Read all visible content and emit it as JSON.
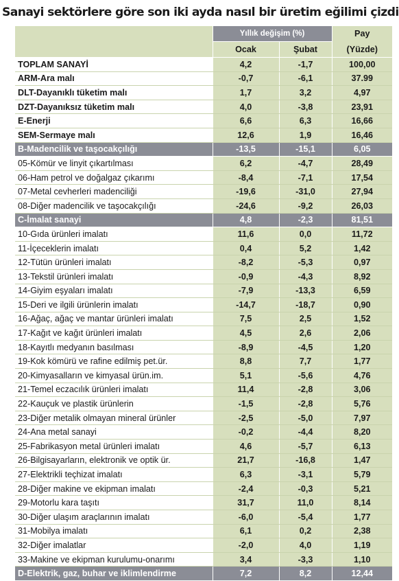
{
  "title": "Sanayi sektörlere göre son iki ayda nasıl bir üretim eğilimi çizdi...",
  "header": {
    "group_label": "Yıllık değişim (%)",
    "pay_line1": "Pay",
    "col_ocak": "Ocak",
    "col_subat": "Şubat",
    "pay_line2": "(Yüzde)"
  },
  "rows": [
    {
      "label": "TOPLAM SANAYİ",
      "ocak": "4,2",
      "subat": "-1,7",
      "pay": "100,00",
      "style": "bold"
    },
    {
      "label": "ARM-Ara malı",
      "ocak": "-0,7",
      "subat": "-6,1",
      "pay": "37.99",
      "style": "bold"
    },
    {
      "label": "DLT-Dayanıklı tüketim malı",
      "ocak": "1,7",
      "subat": "3,2",
      "pay": "4,97",
      "style": "bold"
    },
    {
      "label": "DZT-Dayanıksız tüketim malı",
      "ocak": "4,0",
      "subat": "-3,8",
      "pay": "23,91",
      "style": "bold"
    },
    {
      "label": "E-Enerji",
      "ocak": "6,6",
      "subat": "6,3",
      "pay": "16,66",
      "style": "bold"
    },
    {
      "label": "SEM-Sermaye malı",
      "ocak": "12,6",
      "subat": "1,9",
      "pay": "16,46",
      "style": "bold"
    },
    {
      "label": "B-Madencilik ve taşocakçılığı",
      "ocak": "-13,5",
      "subat": "-15,1",
      "pay": "6,05",
      "style": "section"
    },
    {
      "label": "05-Kömür ve linyit çıkartılması",
      "ocak": "6,2",
      "subat": "-4,7",
      "pay": "28,49",
      "style": "normal"
    },
    {
      "label": "06-Ham petrol ve doğalgaz çıkarımı",
      "ocak": "-8,4",
      "subat": "-7,1",
      "pay": "17,54",
      "style": "normal"
    },
    {
      "label": "07-Metal cevherleri madenciliği",
      "ocak": "-19,6",
      "subat": "-31,0",
      "pay": "27,94",
      "style": "normal"
    },
    {
      "label": "08-Diğer madencilik ve taşocakçılığı",
      "ocak": "-24,6",
      "subat": "-9,2",
      "pay": "26,03",
      "style": "normal"
    },
    {
      "label": "C-İmalat sanayi",
      "ocak": "4,8",
      "subat": "-2,3",
      "pay": "81,51",
      "style": "section"
    },
    {
      "label": "10-Gıda ürünleri imalatı",
      "ocak": "11,6",
      "subat": "0,0",
      "pay": "11,72",
      "style": "normal"
    },
    {
      "label": "11-İçeceklerin imalatı",
      "ocak": "0,4",
      "subat": "5,2",
      "pay": "1,42",
      "style": "normal"
    },
    {
      "label": "12-Tütün ürünleri imalatı",
      "ocak": "-8,2",
      "subat": "-5,3",
      "pay": "0,97",
      "style": "normal"
    },
    {
      "label": "13-Tekstil ürünleri imalatı",
      "ocak": "-0,9",
      "subat": "-4,3",
      "pay": "8,92",
      "style": "normal"
    },
    {
      "label": "14-Giyim eşyaları imalatı",
      "ocak": "-7,9",
      "subat": "-13,3",
      "pay": "6,59",
      "style": "normal"
    },
    {
      "label": "15-Deri ve ilgili ürünlerin imalatı",
      "ocak": "-14,7",
      "subat": "-18,7",
      "pay": "0,90",
      "style": "normal"
    },
    {
      "label": "16-Ağaç, ağaç ve mantar ürünleri imalatı",
      "ocak": "7,5",
      "subat": "2,5",
      "pay": "1,52",
      "style": "normal"
    },
    {
      "label": "17-Kağıt ve kağıt ürünleri imalatı",
      "ocak": "4,5",
      "subat": "2,6",
      "pay": "2,06",
      "style": "normal"
    },
    {
      "label": "18-Kayıtlı medyanın basılması",
      "ocak": "-8,9",
      "subat": "-4,5",
      "pay": "1,20",
      "style": "normal"
    },
    {
      "label": "19-Kok kömürü ve rafine edilmiş pet.ür.",
      "ocak": "8,8",
      "subat": "7,7",
      "pay": "1,77",
      "style": "normal"
    },
    {
      "label": "20-Kimyasalların ve kimyasal ürün.im.",
      "ocak": "5,1",
      "subat": "-5,6",
      "pay": "4,76",
      "style": "normal"
    },
    {
      "label": "21-Temel eczacılık ürünleri imalatı",
      "ocak": "11,4",
      "subat": "-2,8",
      "pay": "3,06",
      "style": "normal"
    },
    {
      "label": "22-Kauçuk ve plastik ürünlerin",
      "ocak": "-1,5",
      "subat": "-2,8",
      "pay": "5,76",
      "style": "normal"
    },
    {
      "label": "23-Diğer metalik olmayan mineral ürünler",
      "ocak": "-2,5",
      "subat": "-5,0",
      "pay": "7,97",
      "style": "normal"
    },
    {
      "label": "24-Ana metal sanayi",
      "ocak": "-0,2",
      "subat": "-4,4",
      "pay": "8,20",
      "style": "normal"
    },
    {
      "label": "25-Fabrikasyon metal ürünleri imalatı",
      "ocak": "4,6",
      "subat": "-5,7",
      "pay": "6,13",
      "style": "normal"
    },
    {
      "label": "26-Bilgisayarların, elektronik ve optik ür.",
      "ocak": "21,7",
      "subat": "-16,8",
      "pay": "1,47",
      "style": "normal"
    },
    {
      "label": "27-Elektrikli teçhizat imalatı",
      "ocak": "6,3",
      "subat": "-3,1",
      "pay": "5,79",
      "style": "normal"
    },
    {
      "label": "28-Diğer makine  ve ekipman imalatı",
      "ocak": "-2,4",
      "subat": "-0,3",
      "pay": "5,21",
      "style": "normal"
    },
    {
      "label": "29-Motorlu kara taşıtı",
      "ocak": "31,7",
      "subat": "11,0",
      "pay": "8,14",
      "style": "normal"
    },
    {
      "label": "30-Diğer ulaşım araçlarının imalatı",
      "ocak": "-6,0",
      "subat": "-5,4",
      "pay": "1,77",
      "style": "normal"
    },
    {
      "label": "31-Mobilya imalatı",
      "ocak": "6,1",
      "subat": "0,2",
      "pay": "2,38",
      "style": "normal"
    },
    {
      "label": "32-Diğer imalatlar",
      "ocak": "-2,0",
      "subat": "4,0",
      "pay": "1,19",
      "style": "normal"
    },
    {
      "label": "33-Makine ve ekipman kurulumu-onarımı",
      "ocak": "3,4",
      "subat": "-3,3",
      "pay": "1,10",
      "style": "normal"
    },
    {
      "label": "D-Elektrik, gaz, buhar ve iklimlendirme",
      "ocak": "7,2",
      "subat": "8,2",
      "pay": "12,44",
      "style": "section"
    }
  ]
}
